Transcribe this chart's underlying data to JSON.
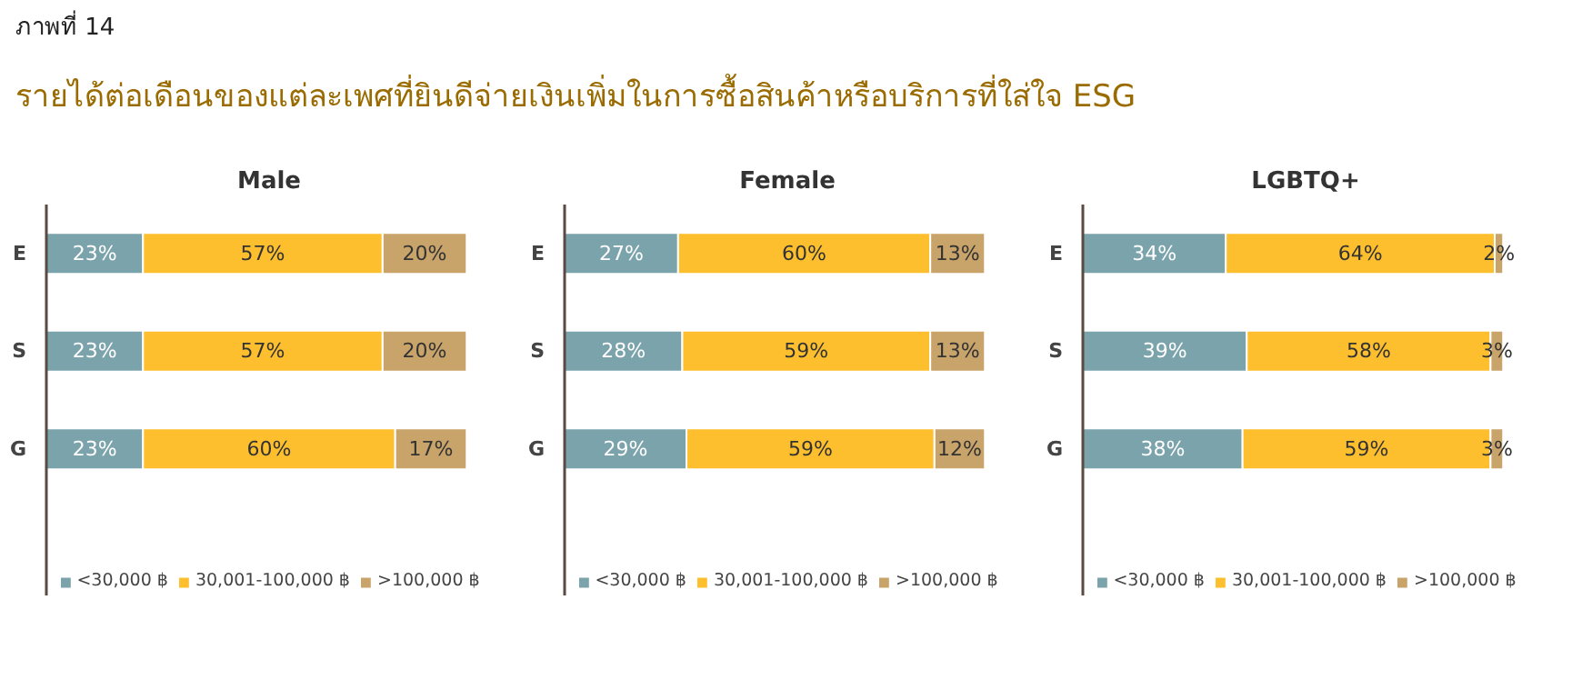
{
  "chart_data": [
    {
      "type": "other",
      "title": "ภาพที่ 14",
      "subtitle": "รายได้ต่อเดือนของแต่ละเพศที่ยินดีจ่ายเงินเพิ่มในการซื้อสินค้าหรือบริการที่ใส่ใจ ESG"
    },
    {
      "type": "bar",
      "orientation": "horizontal",
      "stacked": true,
      "title": "Male",
      "categories": [
        "E",
        "S",
        "G"
      ],
      "legend": "bottom",
      "grid": false,
      "tick_labels": "y",
      "series": [
        {
          "name": "<30,000 ฿",
          "color": "#7ba3ab",
          "values": [
            23,
            23,
            23
          ],
          "value_labels": [
            "23%",
            "23%",
            "23%"
          ]
        },
        {
          "name": "30,001-100,000 ฿",
          "color": "#fdbf2d",
          "values": [
            57,
            57,
            60
          ],
          "value_labels": [
            "57%",
            "57%",
            "60%"
          ]
        },
        {
          "name": ">100,000 ฿",
          "color": "#c9a46a",
          "values": [
            20,
            20,
            17
          ],
          "value_labels": [
            "20%",
            "20%",
            "17%"
          ]
        }
      ]
    },
    {
      "type": "bar",
      "orientation": "horizontal",
      "stacked": true,
      "title": "Female",
      "categories": [
        "E",
        "S",
        "G"
      ],
      "legend": "bottom",
      "grid": false,
      "tick_labels": "y",
      "series": [
        {
          "name": "<30,000 ฿",
          "color": "#7ba3ab",
          "values": [
            27,
            28,
            29
          ],
          "value_labels": [
            "27%",
            "28%",
            "29%"
          ]
        },
        {
          "name": "30,001-100,000 ฿",
          "color": "#fdbf2d",
          "values": [
            60,
            59,
            59
          ],
          "value_labels": [
            "60%",
            "59%",
            "59%"
          ]
        },
        {
          "name": ">100,000 ฿",
          "color": "#c9a46a",
          "values": [
            13,
            13,
            12
          ],
          "value_labels": [
            "13%",
            "13%",
            "12%"
          ]
        }
      ]
    },
    {
      "type": "bar",
      "orientation": "horizontal",
      "stacked": true,
      "title": "LGBTQ+",
      "categories": [
        "E",
        "S",
        "G"
      ],
      "legend": "bottom",
      "grid": false,
      "tick_labels": "y",
      "series": [
        {
          "name": "<30,000 ฿",
          "color": "#7ba3ab",
          "values": [
            34,
            39,
            38
          ],
          "value_labels": [
            "34%",
            "39%",
            "38%"
          ]
        },
        {
          "name": "30,001-100,000 ฿",
          "color": "#fdbf2d",
          "values": [
            64,
            58,
            59
          ],
          "value_labels": [
            "64%",
            "58%",
            "59%"
          ]
        },
        {
          "name": ">100,000 ฿",
          "color": "#c9a46a",
          "values": [
            2,
            3,
            3
          ],
          "value_labels": [
            "2%",
            "3%",
            "3%"
          ]
        }
      ]
    }
  ]
}
